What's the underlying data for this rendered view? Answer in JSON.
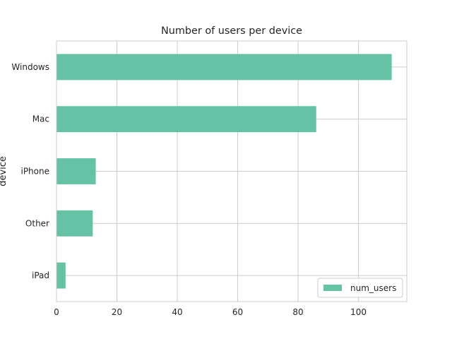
{
  "chart_data": {
    "type": "bar",
    "orientation": "horizontal",
    "title": "Number of users per device",
    "xlabel": "",
    "ylabel": "device",
    "categories": [
      "Windows",
      "Mac",
      "iPhone",
      "Other",
      "iPad"
    ],
    "series": [
      {
        "name": "num_users",
        "values": [
          111,
          86,
          13,
          12,
          3
        ],
        "color": "#66c2a5"
      }
    ],
    "xlim": [
      0,
      116
    ],
    "xticks": [
      0,
      20,
      40,
      60,
      80,
      100
    ],
    "grid": true,
    "legend": {
      "position": "lower-right",
      "entries": [
        "num_users"
      ]
    }
  },
  "colors": {
    "bar": "#66c2a5",
    "grid": "#cccccc",
    "text": "#262626",
    "frame": "#cccccc"
  }
}
